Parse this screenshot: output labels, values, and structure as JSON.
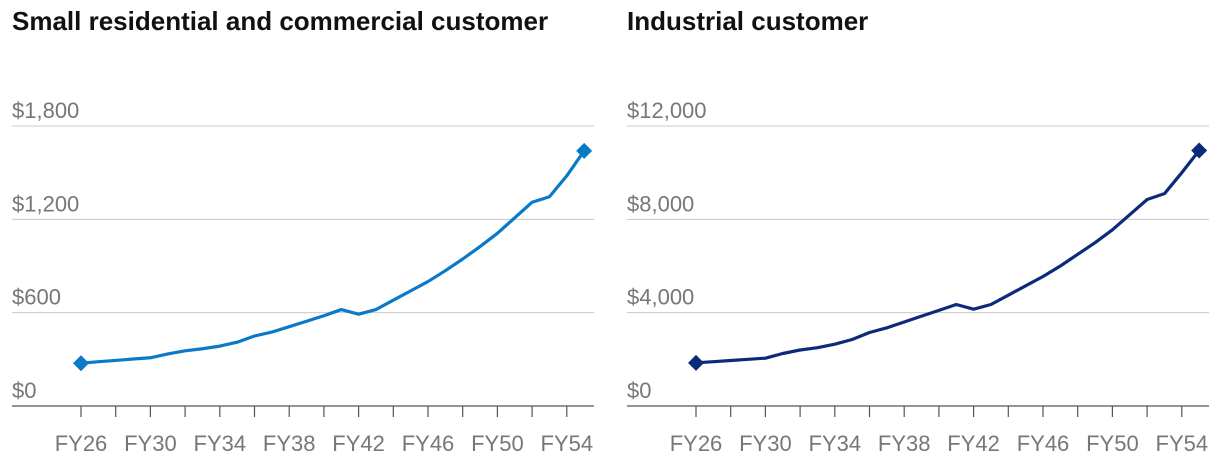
{
  "chart_data": [
    {
      "type": "line",
      "title": "Small residential and commercial customer",
      "color": "#0a7ac8",
      "x_labels": [
        "FY26",
        "FY30",
        "FY34",
        "FY38",
        "FY42",
        "FY46",
        "FY50",
        "FY54"
      ],
      "x": [
        2026,
        2027,
        2028,
        2029,
        2030,
        2031,
        2032,
        2033,
        2034,
        2035,
        2036,
        2037,
        2038,
        2039,
        2040,
        2041,
        2042,
        2043,
        2044,
        2045,
        2046,
        2047,
        2048,
        2049,
        2050,
        2051,
        2052,
        2053,
        2054,
        2055
      ],
      "y": [
        275,
        285,
        293,
        302,
        310,
        335,
        355,
        368,
        385,
        410,
        450,
        475,
        510,
        545,
        580,
        620,
        590,
        620,
        680,
        740,
        800,
        870,
        945,
        1025,
        1110,
        1210,
        1310,
        1345,
        1480,
        1640
      ],
      "yticks": [
        0,
        600,
        1200,
        1800
      ],
      "ytick_labels": [
        "$0",
        "$600",
        "$1,200",
        "$1,800"
      ],
      "ylim": [
        0,
        1800
      ],
      "markers": "diamond at first and last point",
      "grid": true
    },
    {
      "type": "line",
      "title": "Industrial customer",
      "color": "#0c2a7a",
      "x_labels": [
        "FY26",
        "FY30",
        "FY34",
        "FY38",
        "FY42",
        "FY46",
        "FY50",
        "FY54"
      ],
      "x": [
        2026,
        2027,
        2028,
        2029,
        2030,
        2031,
        2032,
        2033,
        2034,
        2035,
        2036,
        2037,
        2038,
        2039,
        2040,
        2041,
        2042,
        2043,
        2044,
        2045,
        2046,
        2047,
        2048,
        2049,
        2050,
        2051,
        2052,
        2053,
        2054,
        2055
      ],
      "y": [
        1850,
        1900,
        1950,
        2000,
        2050,
        2250,
        2400,
        2500,
        2650,
        2850,
        3150,
        3350,
        3600,
        3850,
        4100,
        4350,
        4150,
        4350,
        4750,
        5150,
        5550,
        6000,
        6500,
        7000,
        7550,
        8200,
        8850,
        9100,
        10000,
        10950
      ],
      "yticks": [
        0,
        4000,
        8000,
        12000
      ],
      "ytick_labels": [
        "$0",
        "$4,000",
        "$8,000",
        "$12,000"
      ],
      "ylim": [
        0,
        12000
      ],
      "markers": "diamond at first and last point",
      "grid": true
    }
  ]
}
